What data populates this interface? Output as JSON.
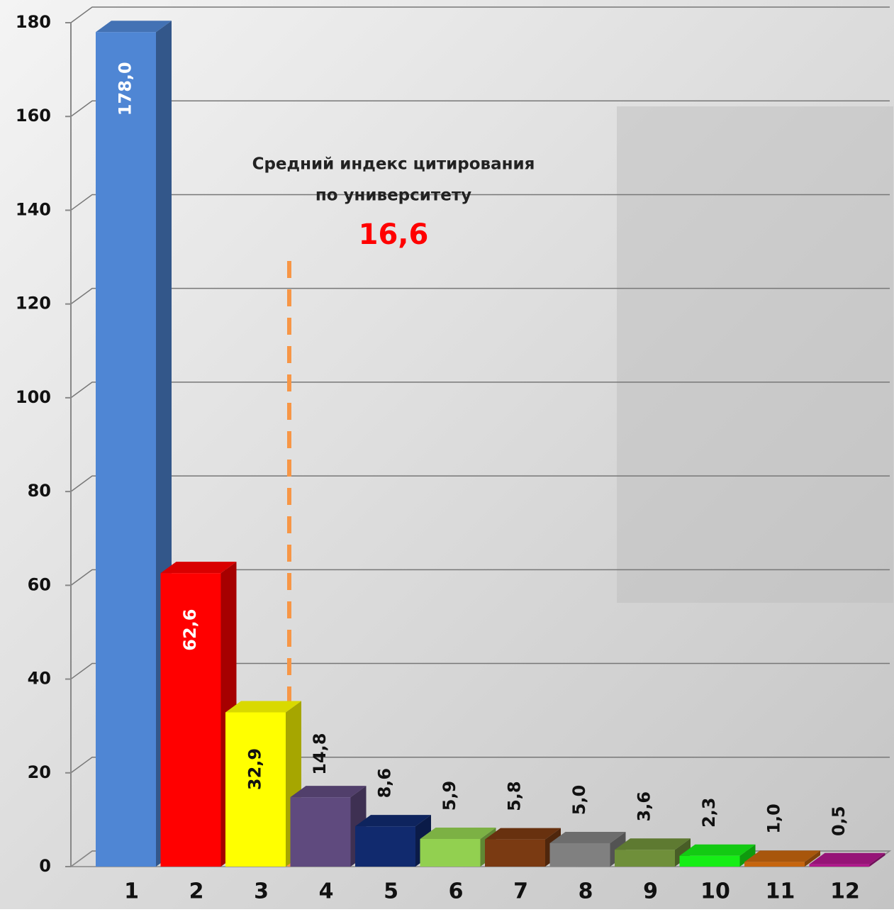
{
  "chart_data": {
    "type": "bar3d",
    "categories": [
      "1",
      "2",
      "3",
      "4",
      "5",
      "6",
      "7",
      "8",
      "9",
      "10",
      "11",
      "12"
    ],
    "values": [
      178.0,
      62.6,
      32.9,
      14.8,
      8.6,
      5.9,
      5.8,
      5.0,
      3.6,
      2.3,
      1.0,
      0.5
    ],
    "value_labels": [
      "178,0",
      "62,6",
      "32,9",
      "14,8",
      "8,6",
      "5,9",
      "5,8",
      "5,0",
      "3,6",
      "2,3",
      "1,0",
      "0,5"
    ],
    "colors": [
      "#4f86d4",
      "#ff0000",
      "#ffff00",
      "#5f4a7e",
      "#112a6e",
      "#92d050",
      "#7a3a12",
      "#808080",
      "#6f8f3a",
      "#16ee16",
      "#c6650e",
      "#b0188c"
    ],
    "ylim": [
      0,
      180
    ],
    "yticks": [
      0,
      20,
      40,
      60,
      80,
      100,
      120,
      140,
      160,
      180
    ],
    "grid": true,
    "annotation": {
      "lines": [
        "Средний индекс цитирования",
        "по университету"
      ],
      "value": "16,6"
    }
  }
}
